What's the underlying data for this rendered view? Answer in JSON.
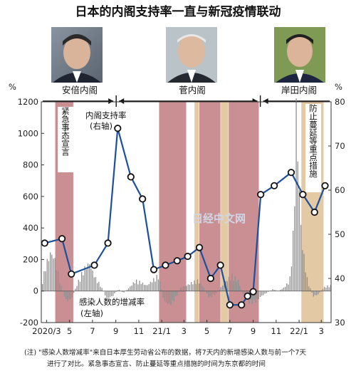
{
  "title": "日本的内阁支持率一直与新冠疫情联动",
  "eras": [
    {
      "label": "安倍内阁",
      "from": "2020-03",
      "to": "2020-09"
    },
    {
      "label": "菅内阁",
      "from": "2020-09",
      "to": "2021-09"
    },
    {
      "label": "岸田内阁",
      "from": "2021-10",
      "to": "2022-04"
    }
  ],
  "annotations": {
    "emergency": "紧急事态宣言",
    "priority": "防止蔓延等重点措施",
    "approval_label_1": "内阁支持率",
    "approval_label_2": "(右轴)",
    "cases_label_1": "感染人数的增减率",
    "cases_label_2": "(左轴)",
    "watermark": "日经中文网"
  },
  "note_lines": [
    "(注) \"感染人数增减率\"来自日本厚生劳动省公布的数据，将7天内的新增感染人数与前一个7天",
    "进行了对比。紧急事态宣言、防止蔓延等重点措施的时间为东京都的时间"
  ],
  "colors": {
    "emergency": "#c98f93",
    "priority": "#e3c9a4",
    "line": "#1c4f9c",
    "bars": "#8f8f8f"
  },
  "chart_data": {
    "type": "line",
    "left_axis": {
      "unit": "%",
      "min": -200,
      "max": 1200,
      "ticks": [
        -200,
        0,
        200,
        400,
        600,
        800,
        1000,
        1200
      ]
    },
    "right_axis": {
      "unit": "%",
      "min": 30,
      "max": 80,
      "ticks": [
        30,
        40,
        50,
        60,
        70,
        80
      ]
    },
    "x_ticks": [
      "2020/3",
      "5",
      "7",
      "9",
      "11",
      "21/1",
      "3",
      "5",
      "7",
      "9",
      "11",
      "22/1",
      "3"
    ],
    "x_start": "2020-03-01",
    "emergency_periods": [
      [
        "2020-04-07",
        "2020-05-25"
      ],
      [
        "2021-01-08",
        "2021-03-21"
      ],
      [
        "2021-04-25",
        "2021-06-20"
      ],
      [
        "2021-07-12",
        "2021-09-30"
      ]
    ],
    "priority_periods": [
      [
        "2021-04-12",
        "2021-04-24"
      ],
      [
        "2021-06-21",
        "2021-07-11"
      ],
      [
        "2022-01-21",
        "2022-03-21"
      ]
    ],
    "approval_series": {
      "axis": "right",
      "points": [
        {
          "date": "2020-03-10",
          "value": 48
        },
        {
          "date": "2020-04-25",
          "value": 49
        },
        {
          "date": "2020-05-20",
          "value": 41
        },
        {
          "date": "2020-07-20",
          "value": 43
        },
        {
          "date": "2020-08-25",
          "value": 48
        },
        {
          "date": "2020-09-20",
          "value": 74
        },
        {
          "date": "2020-10-25",
          "value": 63
        },
        {
          "date": "2020-11-25",
          "value": 58
        },
        {
          "date": "2020-12-25",
          "value": 42
        },
        {
          "date": "2021-01-25",
          "value": 43
        },
        {
          "date": "2021-02-25",
          "value": 44
        },
        {
          "date": "2021-03-25",
          "value": 45
        },
        {
          "date": "2021-04-25",
          "value": 47
        },
        {
          "date": "2021-05-25",
          "value": 40
        },
        {
          "date": "2021-06-20",
          "value": 43
        },
        {
          "date": "2021-07-15",
          "value": 34
        },
        {
          "date": "2021-08-15",
          "value": 34
        },
        {
          "date": "2021-08-31",
          "value": 36
        },
        {
          "date": "2021-09-15",
          "value": 37
        },
        {
          "date": "2021-10-05",
          "value": 59
        },
        {
          "date": "2021-11-10",
          "value": 61
        },
        {
          "date": "2021-12-25",
          "value": 64
        },
        {
          "date": "2022-01-25",
          "value": 59
        },
        {
          "date": "2022-02-25",
          "value": 55
        },
        {
          "date": "2022-03-25",
          "value": 61
        }
      ]
    },
    "cases_series": {
      "axis": "left",
      "points": [
        {
          "date": "2020-03-01",
          "value": 40
        },
        {
          "date": "2020-03-12",
          "value": 150
        },
        {
          "date": "2020-03-25",
          "value": 220
        },
        {
          "date": "2020-04-05",
          "value": 180
        },
        {
          "date": "2020-04-20",
          "value": 40
        },
        {
          "date": "2020-05-05",
          "value": -60
        },
        {
          "date": "2020-05-20",
          "value": -40
        },
        {
          "date": "2020-06-05",
          "value": 50
        },
        {
          "date": "2020-06-20",
          "value": 120
        },
        {
          "date": "2020-07-05",
          "value": 160
        },
        {
          "date": "2020-07-20",
          "value": 80
        },
        {
          "date": "2020-08-05",
          "value": 30
        },
        {
          "date": "2020-08-20",
          "value": -40
        },
        {
          "date": "2020-09-05",
          "value": -30
        },
        {
          "date": "2020-09-20",
          "value": 10
        },
        {
          "date": "2020-10-05",
          "value": -10
        },
        {
          "date": "2020-10-20",
          "value": 20
        },
        {
          "date": "2020-11-05",
          "value": 60
        },
        {
          "date": "2020-11-20",
          "value": 50
        },
        {
          "date": "2020-12-05",
          "value": 30
        },
        {
          "date": "2020-12-20",
          "value": 60
        },
        {
          "date": "2021-01-05",
          "value": 90
        },
        {
          "date": "2021-01-20",
          "value": -60
        },
        {
          "date": "2021-02-05",
          "value": -80
        },
        {
          "date": "2021-02-20",
          "value": -40
        },
        {
          "date": "2021-03-05",
          "value": 20
        },
        {
          "date": "2021-03-20",
          "value": 30
        },
        {
          "date": "2021-04-05",
          "value": 50
        },
        {
          "date": "2021-04-20",
          "value": 60
        },
        {
          "date": "2021-05-05",
          "value": 20
        },
        {
          "date": "2021-05-20",
          "value": -40
        },
        {
          "date": "2021-06-05",
          "value": -20
        },
        {
          "date": "2021-06-20",
          "value": 20
        },
        {
          "date": "2021-07-05",
          "value": 60
        },
        {
          "date": "2021-07-20",
          "value": 90
        },
        {
          "date": "2021-08-05",
          "value": 60
        },
        {
          "date": "2021-08-20",
          "value": -30
        },
        {
          "date": "2021-09-05",
          "value": -70
        },
        {
          "date": "2021-09-20",
          "value": -60
        },
        {
          "date": "2021-10-05",
          "value": -30
        },
        {
          "date": "2021-10-20",
          "value": -10
        },
        {
          "date": "2021-11-05",
          "value": 10
        },
        {
          "date": "2021-11-20",
          "value": 0
        },
        {
          "date": "2021-12-05",
          "value": 20
        },
        {
          "date": "2021-12-20",
          "value": 60
        },
        {
          "date": "2022-01-01",
          "value": 400
        },
        {
          "date": "2022-01-05",
          "value": 1100
        },
        {
          "date": "2022-01-10",
          "value": 800
        },
        {
          "date": "2022-01-20",
          "value": 300
        },
        {
          "date": "2022-02-05",
          "value": 60
        },
        {
          "date": "2022-02-20",
          "value": -30
        },
        {
          "date": "2022-03-05",
          "value": -20
        },
        {
          "date": "2022-03-20",
          "value": 20
        },
        {
          "date": "2022-04-01",
          "value": 30
        }
      ]
    }
  }
}
